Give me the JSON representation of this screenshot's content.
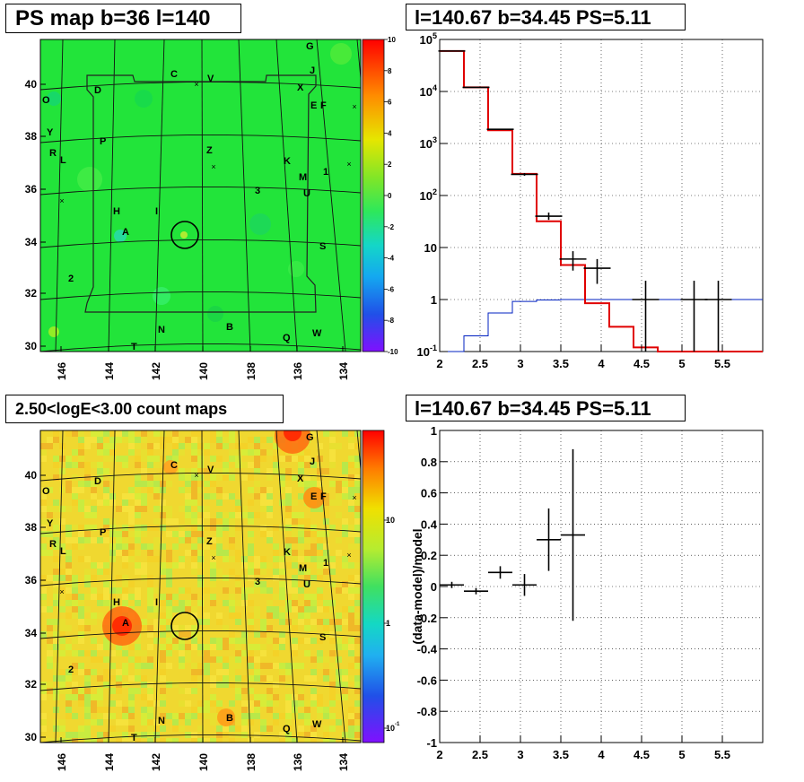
{
  "titles": {
    "ps_map": "PS map b=36 l=140",
    "spectrum": "l=140.67 b=34.45 PS=5.11",
    "count_map": "2.50<logE<3.00 count maps",
    "residual": "l=140.67 b=34.45 PS=5.11"
  },
  "colors": {
    "data": "#000000",
    "model": "#e00000",
    "background_model": "#0020c0"
  },
  "chart_data": [
    {
      "type": "heatmap",
      "title": "PS map b=36 l=140",
      "xlabel": "",
      "ylabel": "",
      "x_ticks": [
        "146",
        "144",
        "142",
        "140",
        "138",
        "136",
        "134"
      ],
      "y_ticks": [
        "30",
        "32",
        "34",
        "36",
        "38",
        "40"
      ],
      "colorbar": {
        "range": [
          -10,
          10
        ],
        "ticks": [
          "10",
          "8",
          "6",
          "4",
          "2",
          "0",
          "-2",
          "-4",
          "-6",
          "-8",
          "-10"
        ]
      },
      "source_labels": [
        "G",
        "C",
        "V",
        "J",
        "X",
        "D",
        "O",
        "E",
        "F",
        "Y",
        "P",
        "Z",
        "R",
        "L",
        "K",
        "1",
        "M",
        "3",
        "U",
        "H",
        "I",
        "A",
        "S",
        "2",
        "N",
        "B",
        "Q",
        "W",
        "T"
      ],
      "marker": {
        "l": 140.67,
        "b": 34.45
      }
    },
    {
      "type": "line",
      "title": "l=140.67 b=34.45 PS=5.11",
      "xlabel": "",
      "ylabel": "",
      "y_scale": "log",
      "xlim": [
        2,
        6
      ],
      "ylim": [
        0.1,
        100000
      ],
      "x_ticks": [
        "2",
        "2.5",
        "3",
        "3.5",
        "4",
        "4.5",
        "5",
        "5.5"
      ],
      "y_ticks": [
        "10^-1",
        "1",
        "10",
        "10^2",
        "10^3",
        "10^4",
        "10^5"
      ],
      "grid": true,
      "bin_edges": [
        2.0,
        2.3,
        2.6,
        2.9,
        3.2,
        3.5,
        3.8,
        4.1,
        4.4,
        4.7,
        5.0,
        5.3,
        5.6,
        6.0
      ],
      "series": [
        {
          "role": "model",
          "values": [
            60000,
            12000,
            1800,
            260,
            32,
            4.6,
            0.85,
            0.3,
            0.12,
            0.1,
            0.1,
            0.1,
            0.1
          ]
        },
        {
          "role": "background_model",
          "values": [
            0.05,
            0.2,
            0.55,
            0.92,
            0.98,
            1.0,
            1.0,
            1.0,
            1.0,
            1.0,
            1.0,
            1.0,
            1.0
          ]
        },
        {
          "role": "data",
          "points": [
            {
              "x": 2.15,
              "y": 60000,
              "lo": 59700,
              "hi": 60300
            },
            {
              "x": 2.45,
              "y": 12000,
              "lo": 11880,
              "hi": 12120
            },
            {
              "x": 2.75,
              "y": 1870,
              "lo": 1820,
              "hi": 1910
            },
            {
              "x": 3.05,
              "y": 255,
              "lo": 240,
              "hi": 270
            },
            {
              "x": 3.35,
              "y": 40,
              "lo": 34,
              "hi": 47
            },
            {
              "x": 3.65,
              "y": 6,
              "lo": 3.6,
              "hi": 8.5
            },
            {
              "x": 3.95,
              "y": 4,
              "lo": 2,
              "hi": 6
            },
            {
              "x": 4.55,
              "y": 1,
              "lo": 0.1,
              "hi": 2.3
            },
            {
              "x": 5.15,
              "y": 1,
              "lo": 0.1,
              "hi": 2.3
            },
            {
              "x": 5.45,
              "y": 1,
              "lo": 0.1,
              "hi": 2.3
            }
          ]
        }
      ]
    },
    {
      "type": "heatmap",
      "title": "2.50<logE<3.00 count maps",
      "xlabel": "",
      "ylabel": "",
      "x_ticks": [
        "146",
        "144",
        "142",
        "140",
        "138",
        "136",
        "134"
      ],
      "y_ticks": [
        "30",
        "32",
        "34",
        "36",
        "38",
        "40"
      ],
      "colorbar": {
        "scale": "log",
        "ticks": [
          "10",
          "1",
          "10^-1"
        ]
      },
      "source_labels": [
        "G",
        "C",
        "V",
        "J",
        "X",
        "D",
        "O",
        "E",
        "F",
        "Y",
        "P",
        "Z",
        "R",
        "L",
        "K",
        "1",
        "M",
        "3",
        "U",
        "H",
        "I",
        "A",
        "S",
        "2",
        "N",
        "B",
        "Q",
        "W",
        "T"
      ],
      "marker": {
        "l": 140.67,
        "b": 34.45
      }
    },
    {
      "type": "scatter",
      "title": "l=140.67 b=34.45 PS=5.11",
      "xlabel": "",
      "ylabel": "(data-model)/model",
      "xlim": [
        2,
        6
      ],
      "ylim": [
        -1,
        1
      ],
      "x_ticks": [
        "2",
        "2.5",
        "3",
        "3.5",
        "4",
        "4.5",
        "5",
        "5.5"
      ],
      "y_ticks": [
        "-1",
        "-0.8",
        "-0.6",
        "-0.4",
        "-0.2",
        "0",
        "0.2",
        "0.4",
        "0.6",
        "0.8",
        "1"
      ],
      "grid": true,
      "points": [
        {
          "x": 2.15,
          "y": 0.01,
          "err": 0.02,
          "xerr": 0.15
        },
        {
          "x": 2.45,
          "y": -0.03,
          "err": 0.02,
          "xerr": 0.15
        },
        {
          "x": 2.75,
          "y": 0.09,
          "err": 0.04,
          "xerr": 0.15
        },
        {
          "x": 3.05,
          "y": 0.01,
          "err": 0.07,
          "xerr": 0.15
        },
        {
          "x": 3.35,
          "y": 0.3,
          "err": 0.2,
          "xerr": 0.15
        },
        {
          "x": 3.65,
          "y": 0.33,
          "err": 0.55,
          "xerr": 0.15
        }
      ]
    }
  ]
}
